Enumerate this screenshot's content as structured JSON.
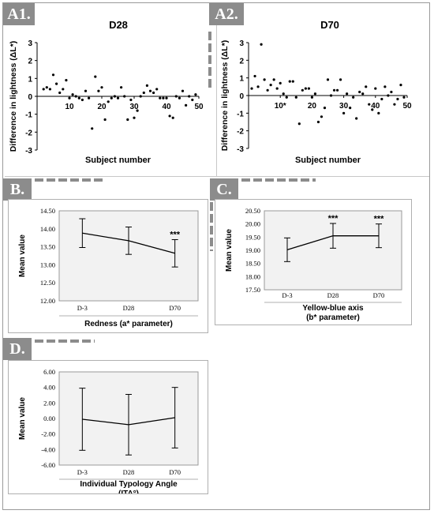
{
  "panels": {
    "a1": {
      "tag": "A1.",
      "title": "D28"
    },
    "a2": {
      "tag": "A2.",
      "title": "D70"
    },
    "b": {
      "tag": "B."
    },
    "c": {
      "tag": "C."
    },
    "d": {
      "tag": "D."
    }
  },
  "chart_data": [
    {
      "id": "a1",
      "type": "scatter",
      "title": "D28",
      "xlabel": "Subject number",
      "ylabel": "Difference in lightness (ΔL*)",
      "xlim": [
        0,
        50
      ],
      "ylim": [
        -3,
        3
      ],
      "xticks": [
        10,
        20,
        30,
        40,
        50
      ],
      "yticks": [
        -3,
        -2,
        -1,
        0,
        1,
        2,
        3
      ],
      "x": [
        2,
        3,
        4,
        5,
        6,
        7,
        8,
        9,
        10,
        11,
        12,
        13,
        14,
        15,
        16,
        17,
        18,
        19,
        20,
        21,
        22,
        23,
        24,
        25,
        26,
        27,
        28,
        29,
        30,
        31,
        32,
        33,
        34,
        35,
        36,
        37,
        38,
        39,
        40,
        41,
        42,
        43,
        44,
        45,
        46,
        47,
        48,
        49
      ],
      "y": [
        0.4,
        0.5,
        0.4,
        1.2,
        0.7,
        0.2,
        0.4,
        0.9,
        -0.1,
        0.1,
        0,
        -0.1,
        -0.2,
        0.3,
        -0.1,
        -1.8,
        1.1,
        0.3,
        0.5,
        -1.3,
        -0.3,
        -0.1,
        0,
        -0.1,
        0.5,
        0,
        -1.3,
        -0.2,
        -1.2,
        -0.8,
        0,
        0.2,
        0.6,
        0.3,
        0.2,
        0.4,
        -0.1,
        -0.1,
        -0.1,
        -1.1,
        -1.2,
        0,
        -0.1,
        0.3,
        -0.5,
        0,
        -0.2,
        0.1
      ]
    },
    {
      "id": "a2",
      "type": "scatter",
      "title": "D70",
      "xlabel": "Subject number",
      "ylabel": "Difference in lightness (ΔL*)",
      "xlim": [
        0,
        50
      ],
      "ylim": [
        -3,
        3
      ],
      "xticks": [
        10,
        20,
        30,
        40,
        50
      ],
      "xticklabels": [
        "10*",
        "20",
        "30",
        "40",
        "50"
      ],
      "yticks": [
        -3,
        -2,
        -1,
        0,
        1,
        2,
        3
      ],
      "x": [
        1,
        2,
        3,
        4,
        5,
        6,
        7,
        8,
        9,
        10,
        11,
        12,
        13,
        14,
        15,
        16,
        17,
        18,
        19,
        20,
        21,
        22,
        23,
        24,
        25,
        26,
        27,
        28,
        29,
        30,
        31,
        32,
        33,
        34,
        35,
        36,
        37,
        38,
        39,
        40,
        41,
        42,
        43,
        44,
        45,
        46,
        47,
        48,
        49
      ],
      "y": [
        0.4,
        1.1,
        0.5,
        2.9,
        0.9,
        0.3,
        0.6,
        0.9,
        0.4,
        0.7,
        0.1,
        -0.1,
        0.8,
        0.8,
        -0.1,
        -1.6,
        0.3,
        0.4,
        0.4,
        -0.1,
        0.1,
        -1.5,
        -1.2,
        -0.7,
        0.9,
        0,
        0.3,
        0.3,
        0.9,
        -1,
        0.1,
        -0.7,
        -0.1,
        -1.3,
        0.2,
        0.1,
        0.5,
        -0.5,
        -0.8,
        0.4,
        -1,
        -0.2,
        0.5,
        0,
        0.2,
        -0.5,
        -0.2,
        0.6,
        -0.1
      ]
    },
    {
      "id": "b",
      "type": "line",
      "categories": [
        "D-3",
        "D28",
        "D70"
      ],
      "values": [
        13.88,
        13.67,
        13.32
      ],
      "errors": [
        0.4,
        0.38,
        0.38
      ],
      "significance": [
        "",
        "",
        "***"
      ],
      "xlabel": "Redness (a* parameter)",
      "ylabel": "Mean value",
      "ylim": [
        12.0,
        14.5
      ],
      "yticks": [
        "12.00",
        "12.50",
        "13.00",
        "13.50",
        "14.00",
        "14.50"
      ]
    },
    {
      "id": "c",
      "type": "line",
      "categories": [
        "D-3",
        "D28",
        "D70"
      ],
      "values": [
        19.02,
        19.55,
        19.55
      ],
      "errors": [
        0.45,
        0.47,
        0.45
      ],
      "significance": [
        "",
        "***",
        "***"
      ],
      "xlabel": "Yellow-blue axis\n(b* parameter)",
      "ylabel": "Mean value",
      "ylim": [
        17.5,
        20.5
      ],
      "yticks": [
        "17.50",
        "18.00",
        "18.50",
        "19.00",
        "19.50",
        "20.00",
        "20.50"
      ]
    },
    {
      "id": "d",
      "type": "line",
      "categories": [
        "D-3",
        "D28",
        "D70"
      ],
      "values": [
        -0.1,
        -0.8,
        0.1
      ],
      "errors": [
        4.0,
        3.9,
        3.9
      ],
      "significance": [
        "",
        "",
        ""
      ],
      "xlabel": "Individual Typology Angle\n(ITA°)",
      "ylabel": "Mean value",
      "ylim": [
        -6.0,
        6.0
      ],
      "yticks": [
        "-6.00",
        "-4.00",
        "-2.00",
        "0.00",
        "2.00",
        "4.00",
        "6.00"
      ]
    }
  ]
}
